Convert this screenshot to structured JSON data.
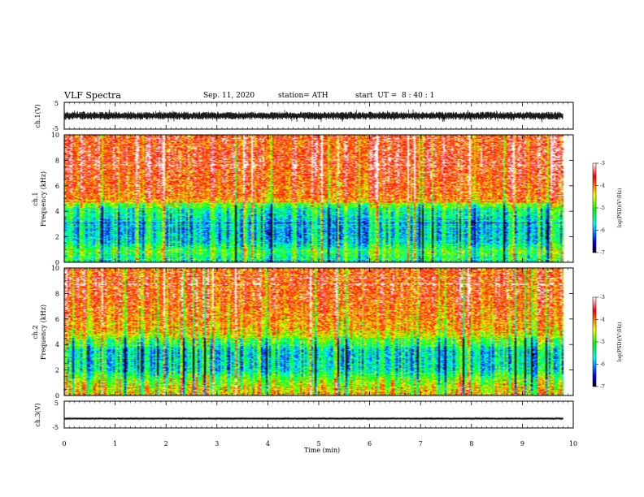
{
  "header": {
    "title": "VLF Spectra",
    "date": "Sep. 11, 2020",
    "station": "station= ATH",
    "start_label": "start  UT =  8 : 40 : 1"
  },
  "chart_data": [
    {
      "type": "line",
      "panel": "ch1-waveform",
      "ylabel": "ch.1(V)",
      "y_ticks": [
        "5",
        "-5"
      ],
      "ylim": [
        -5,
        5
      ],
      "x_unit": "min",
      "xlim": [
        0,
        10
      ],
      "data_end_min": 9.8,
      "amplitude_envelope_V": [
        -1.5,
        1.5
      ],
      "color": "#000000"
    },
    {
      "type": "heatmap",
      "panel": "ch1-spectrogram",
      "ylabel_line1": "ch.1",
      "ylabel_line2": "Frequency  (kHz)",
      "y_ticks": [
        "0",
        "2",
        "4",
        "6",
        "8",
        "10"
      ],
      "ylim": [
        0,
        10
      ],
      "xlim": [
        0,
        10
      ],
      "data_end_min": 9.8,
      "colorbar": {
        "label": "log(PSD)(V²/Hz)",
        "ticks": [
          "-3",
          "-4",
          "-5",
          "-6",
          "-7"
        ],
        "range": [
          -7,
          -3
        ],
        "colors": [
          "#000000",
          "#0000ff",
          "#00ffff",
          "#00ff00",
          "#ffff00",
          "#ff0000",
          "#ffffff"
        ]
      },
      "frequency_profile_kHz": [
        [
          0,
          -5.5
        ],
        [
          0.8,
          -4.9
        ],
        [
          1.5,
          -5.6
        ],
        [
          2.5,
          -5.8
        ],
        [
          4.2,
          -5.3
        ],
        [
          5,
          -3.9
        ],
        [
          8,
          -3.5
        ],
        [
          10,
          -3.7
        ]
      ]
    },
    {
      "type": "heatmap",
      "panel": "ch2-spectrogram",
      "ylabel_line1": "ch.2",
      "ylabel_line2": "Frequency  (kHz)",
      "y_ticks": [
        "0",
        "2",
        "4",
        "6",
        "8",
        "10"
      ],
      "ylim": [
        0,
        10
      ],
      "xlim": [
        0,
        10
      ],
      "data_end_min": 9.8,
      "colorbar": {
        "label": "log(PSD)(V²/Hz)",
        "ticks": [
          "-3",
          "-4",
          "-5",
          "-6",
          "-7"
        ],
        "range": [
          -7,
          -3
        ]
      },
      "frequency_profile_kHz": [
        [
          0,
          -4.2
        ],
        [
          1.2,
          -4.8
        ],
        [
          2,
          -5.6
        ],
        [
          3.5,
          -5.7
        ],
        [
          5,
          -4.2
        ],
        [
          8,
          -3.7
        ],
        [
          10,
          -3.8
        ]
      ]
    },
    {
      "type": "line",
      "panel": "ch3-waveform",
      "ylabel": "ch.3(V)",
      "y_ticks": [
        "5",
        "-5"
      ],
      "ylim": [
        -5,
        5
      ],
      "xlim": [
        0,
        10
      ],
      "data_end_min": 9.8,
      "constant_level_V": -1.5,
      "amplitude_envelope_V": [
        -0.4,
        0.4
      ],
      "xlabel": "Time  (min)",
      "x_ticks": [
        "0",
        "1",
        "2",
        "3",
        "4",
        "5",
        "6",
        "7",
        "8",
        "9",
        "10"
      ]
    }
  ]
}
